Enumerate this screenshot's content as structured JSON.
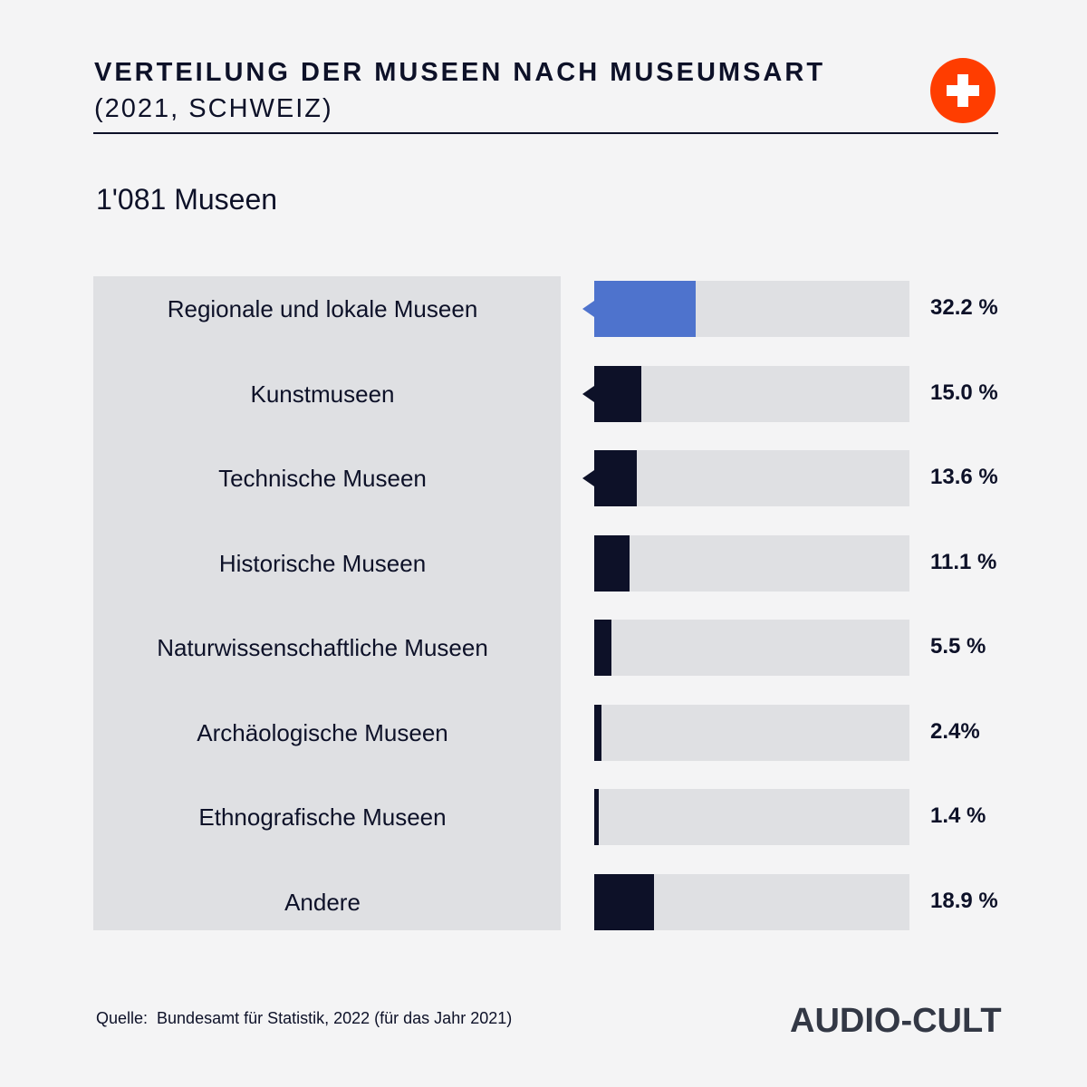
{
  "header": {
    "title_line1": "VERTEILUNG DER MUSEEN NACH MUSEUMSART",
    "title_line2": "(2021, SCHWEIZ)"
  },
  "flag_icon": "swiss-flag-icon",
  "total_label": "1'081 Museen",
  "chart_data": {
    "type": "bar",
    "orientation": "horizontal",
    "categories": [
      "Regionale und lokale Museen",
      "Kunstmuseen",
      "Technische Museen",
      "Historische Museen",
      "Naturwissenschaftliche Museen",
      "Archäologische Museen",
      "Ethnografische Museen",
      "Andere"
    ],
    "values": [
      32.2,
      15.0,
      13.6,
      11.1,
      5.5,
      2.4,
      1.4,
      18.9
    ],
    "value_labels": [
      "32.2 %",
      "15.0 %",
      "13.6 %",
      "11.1 %",
      "5.5 %",
      "2.4%",
      "1.4 %",
      "18.9 %"
    ],
    "xlim": [
      0,
      100
    ],
    "highlight_index": 0,
    "pointer_indices": [
      0,
      1,
      2
    ],
    "colors": {
      "highlight": "#4e73cd",
      "bar": "#0d1128",
      "track": "#dfe0e3"
    }
  },
  "footer": {
    "source": "Quelle:  Bundesamt für Statistik, 2022 (für das Jahr 2021)",
    "brand": "AUDIO-CULT"
  },
  "colors": {
    "accent": "#ff3d00",
    "text": "#0d1128",
    "background": "#f4f4f5"
  }
}
